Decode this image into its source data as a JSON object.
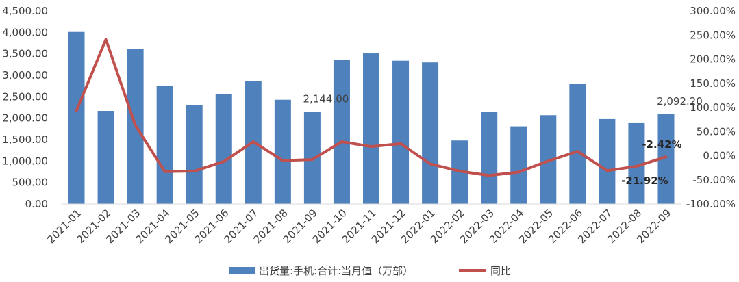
{
  "chart_data": {
    "type": "bar",
    "categories": [
      "2021-01",
      "2021-02",
      "2021-03",
      "2021-04",
      "2021-05",
      "2021-06",
      "2021-07",
      "2021-08",
      "2021-09",
      "2021-10",
      "2021-11",
      "2021-12",
      "2022-01",
      "2022-02",
      "2022-03",
      "2022-04",
      "2022-05",
      "2022-06",
      "2022-07",
      "2022-08",
      "2022-09"
    ],
    "series": [
      {
        "name": "出货量:手机:合计:当月值（万部）",
        "type": "bar",
        "axis": "left",
        "color": "#4F81BD",
        "values": [
          4010,
          2170,
          3610,
          2750,
          2300,
          2560,
          2860,
          2430,
          2144,
          3360,
          3510,
          3340,
          3300,
          1480,
          2140,
          1810,
          2070,
          2800,
          1980,
          1900,
          2092.2
        ]
      },
      {
        "name": "同比",
        "type": "line",
        "axis": "right",
        "color": "#C0504D",
        "values": [
          93,
          241,
          63,
          -33,
          -32,
          -12,
          29,
          -10,
          -8,
          29,
          19,
          25,
          -17,
          -32,
          -41,
          -34,
          -11,
          9,
          -31,
          -21.92,
          -2.42
        ]
      }
    ],
    "title": "",
    "xlabel": "",
    "ylabel": "",
    "y_left": {
      "ylim": [
        0,
        4500
      ],
      "ticks": [
        "0.00",
        "500.00",
        "1,000.00",
        "1,500.00",
        "2,000.00",
        "2,500.00",
        "3,000.00",
        "3,500.00",
        "4,000.00",
        "4,500.00"
      ]
    },
    "y_right": {
      "ylim": [
        -100,
        300
      ],
      "ticks": [
        "-100.00%",
        "-50.00%",
        "0.00%",
        "50.00%",
        "100.00%",
        "150.00%",
        "200.00%",
        "250.00%",
        "300.00%"
      ]
    },
    "annotations": [
      {
        "series": 0,
        "index": 8,
        "text": "2,144.00",
        "style": "normal"
      },
      {
        "series": 0,
        "index": 20,
        "text": "2,092.20",
        "style": "normal"
      },
      {
        "series": 1,
        "index": 19,
        "text": "-21.92%",
        "style": "bold"
      },
      {
        "series": 1,
        "index": 20,
        "text": "-2.42%",
        "style": "bold"
      }
    ],
    "grid": false,
    "legend": "bottom"
  }
}
